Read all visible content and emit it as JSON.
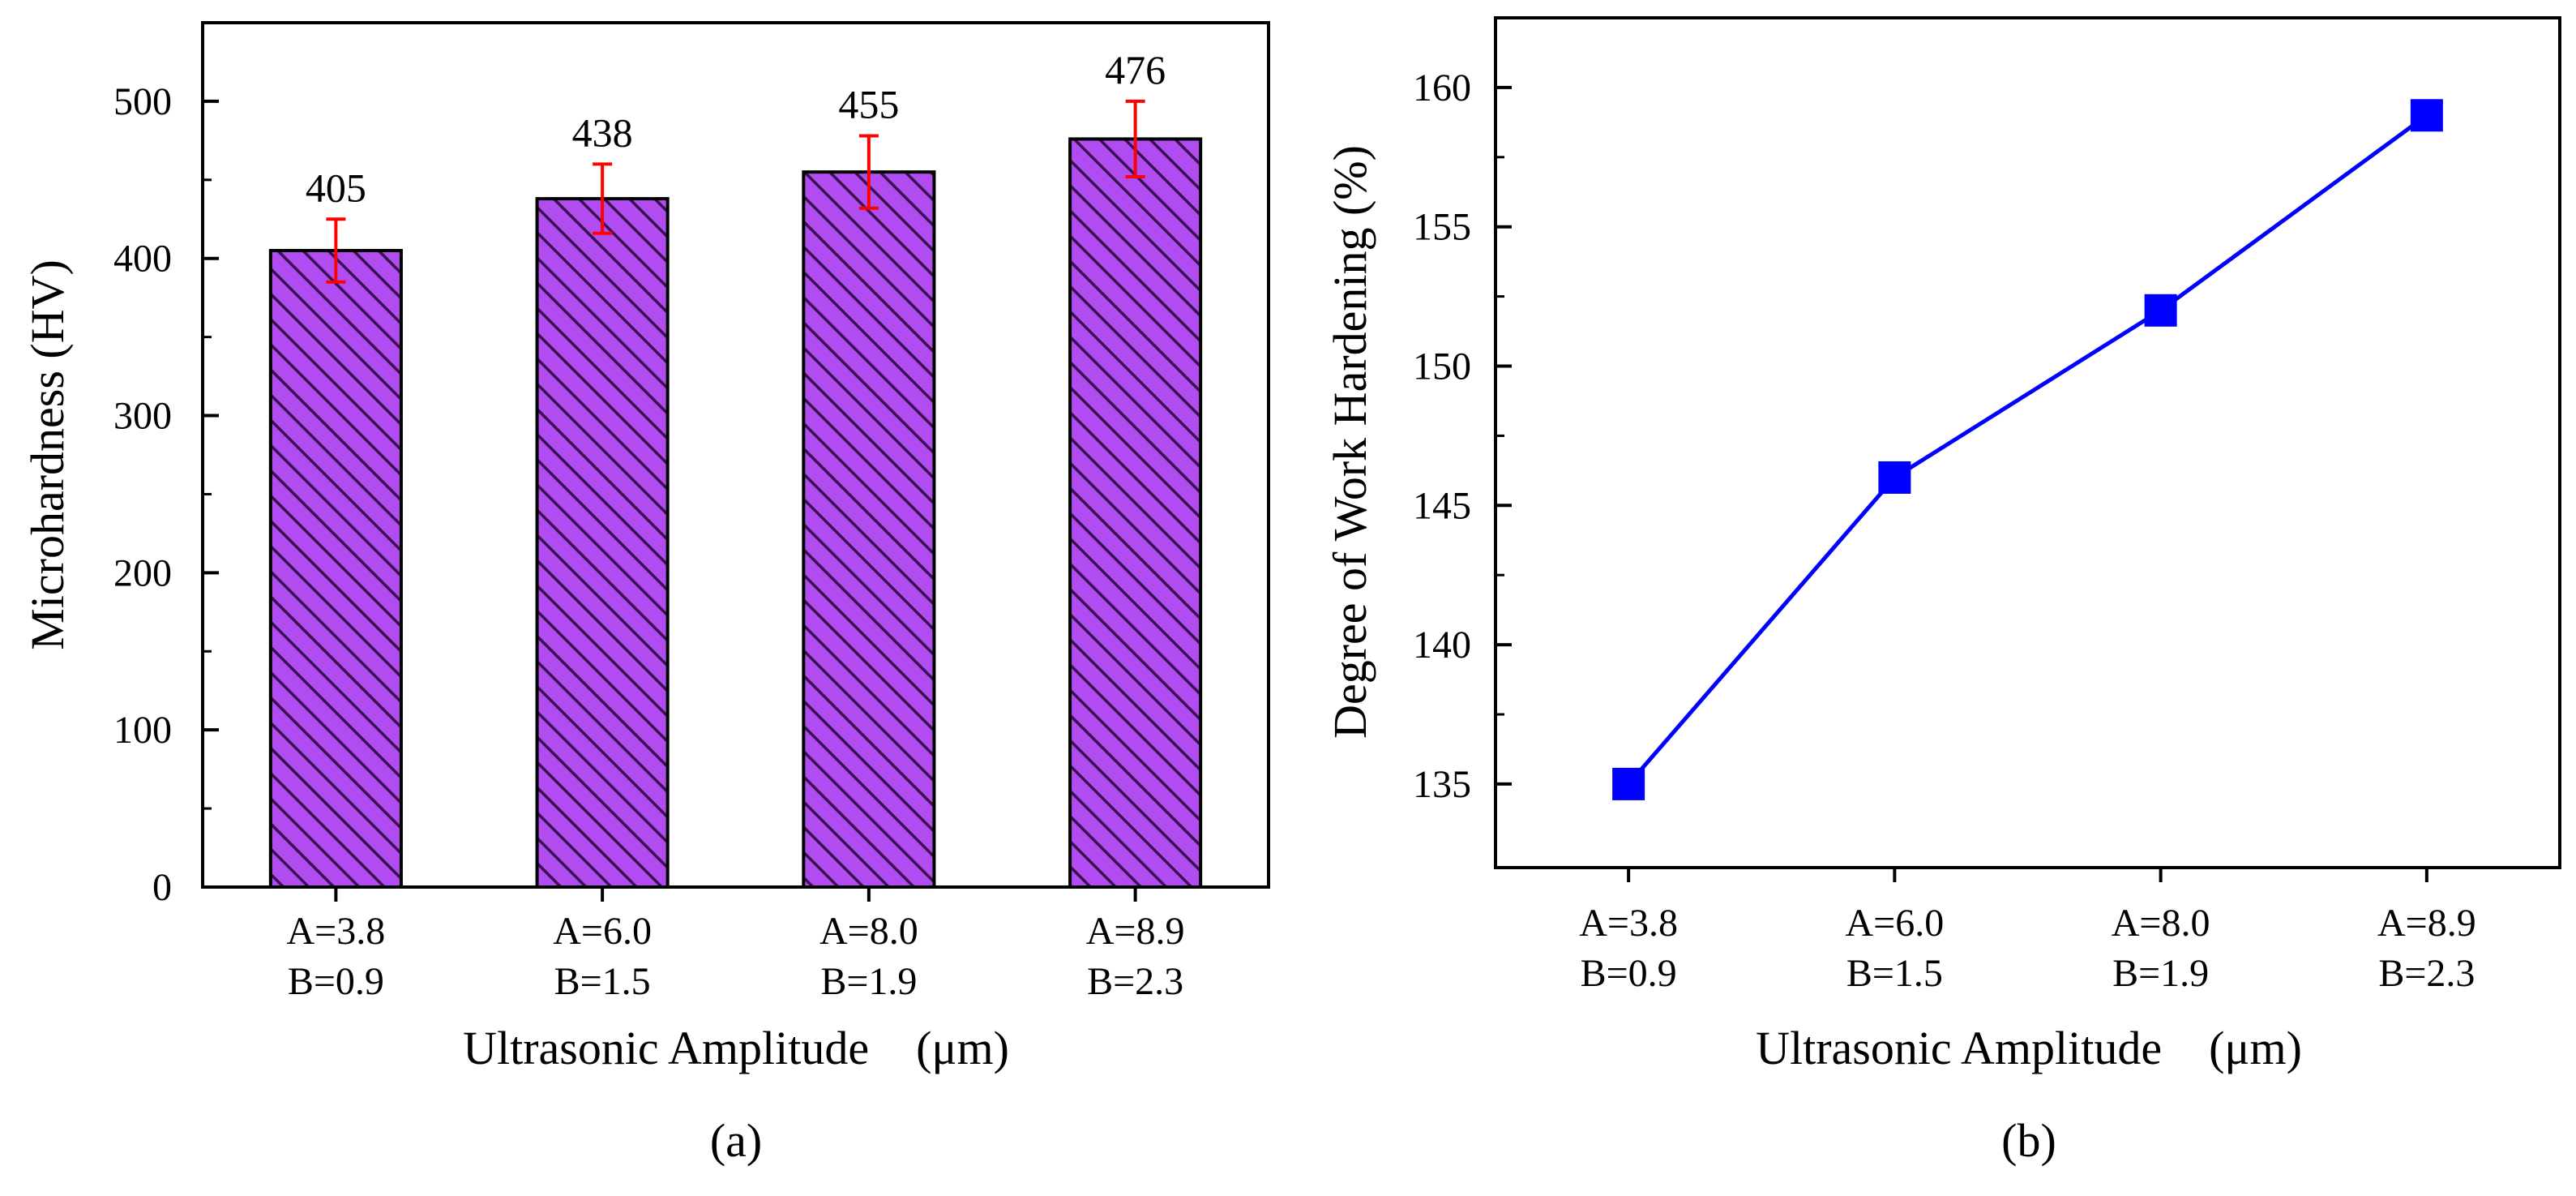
{
  "chart_data": [
    {
      "panel": "(a)",
      "type": "bar",
      "title": "",
      "xlabel": "Ultrasonic Amplitude　(μm)",
      "ylabel": "Microhardness (HV)",
      "categories": [
        [
          "A=3.8",
          "B=0.9"
        ],
        [
          "A=6.0",
          "B=1.5"
        ],
        [
          "A=8.0",
          "B=1.9"
        ],
        [
          "A=8.9",
          "B=2.3"
        ]
      ],
      "values": [
        405,
        438,
        455,
        476
      ],
      "value_labels": [
        "405",
        "438",
        "455",
        "476"
      ],
      "error": [
        20,
        22,
        23,
        24
      ],
      "ylim": [
        0,
        550
      ],
      "yticks": [
        0,
        100,
        200,
        300,
        400,
        500
      ],
      "bar_color": "#b04cf0",
      "hatch_color": "#3a1050",
      "error_color": "#ff0000"
    },
    {
      "panel": "(b)",
      "type": "line",
      "title": "",
      "xlabel": "Ultrasonic Amplitude　(μm)",
      "ylabel": "Degree of Work Hardening (%)",
      "categories": [
        [
          "A=3.8",
          "B=0.9"
        ],
        [
          "A=6.0",
          "B=1.5"
        ],
        [
          "A=8.0",
          "B=1.9"
        ],
        [
          "A=8.9",
          "B=2.3"
        ]
      ],
      "values": [
        135,
        146,
        152,
        159
      ],
      "ylim": [
        132,
        162.5
      ],
      "yticks": [
        135,
        140,
        145,
        150,
        155,
        160
      ],
      "marker": "square",
      "line_color": "#0000ff"
    }
  ]
}
